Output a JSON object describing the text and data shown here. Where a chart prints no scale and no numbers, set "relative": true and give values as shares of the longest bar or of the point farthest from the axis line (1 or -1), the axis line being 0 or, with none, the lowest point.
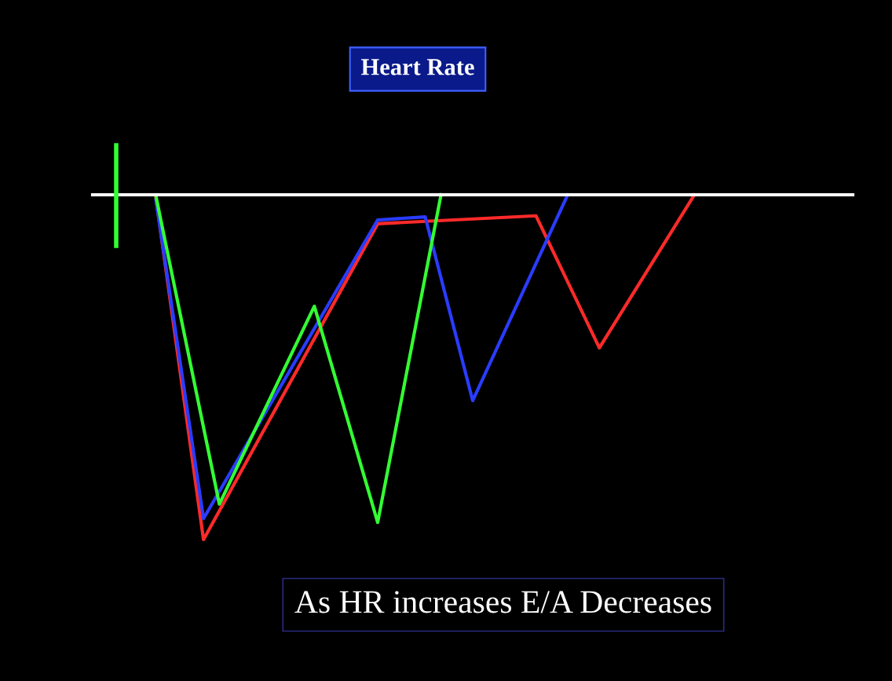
{
  "chart_data": {
    "type": "line",
    "title": "Heart Rate",
    "relative": true,
    "marker": "none",
    "line_style": "solid",
    "categories": [
      null,
      null,
      null,
      null,
      null,
      null,
      null,
      null,
      null,
      null,
      null,
      null,
      null,
      null,
      null,
      null,
      null,
      null,
      null,
      null,
      null,
      null,
      null,
      null,
      null,
      null,
      null,
      null,
      null,
      null,
      null,
      null,
      null,
      null,
      null,
      null,
      null,
      null,
      null,
      null,
      null,
      null,
      null,
      null,
      null,
      null,
      null,
      null,
      null
    ],
    "series": [
      {
        "color": "#ff2a2a",
        "values": [
          null,
          null,
          null,
          null,
          -0.01,
          null,
          null,
          -1,
          null,
          null,
          null,
          null,
          null,
          null,
          null,
          null,
          null,
          null,
          -0.084,
          null,
          null,
          null,
          null,
          null,
          null,
          null,
          null,
          null,
          -0.061,
          null,
          null,
          null,
          -0.444,
          null,
          null,
          null,
          null,
          null,
          0,
          null,
          null,
          null,
          null,
          null,
          null,
          null,
          null,
          null,
          null
        ]
      },
      {
        "color": "#2a3cff",
        "values": [
          null,
          null,
          null,
          null,
          -0.016,
          null,
          null,
          -0.939,
          null,
          null,
          null,
          null,
          null,
          null,
          null,
          null,
          null,
          null,
          -0.073,
          null,
          null,
          -0.064,
          null,
          null,
          -0.597,
          null,
          null,
          null,
          null,
          null,
          0,
          null,
          null,
          null,
          null,
          null,
          null,
          null,
          null,
          null,
          null,
          null,
          null,
          null,
          null,
          null,
          null,
          null,
          null
        ]
      },
      {
        "color": "#33ff33",
        "values": [
          null,
          null,
          null,
          null,
          -0.005,
          null,
          null,
          null,
          -0.897,
          null,
          null,
          null,
          null,
          null,
          -0.323,
          null,
          null,
          null,
          -0.95,
          null,
          null,
          null,
          0,
          null,
          null,
          null,
          null,
          null,
          null,
          null,
          null,
          null,
          null,
          null,
          null,
          null,
          null,
          null,
          null,
          null,
          null,
          null,
          null,
          null,
          null,
          null,
          null,
          null,
          null
        ]
      }
    ],
    "annotations": [
      "As HR increases E/A Decreases"
    ]
  }
}
